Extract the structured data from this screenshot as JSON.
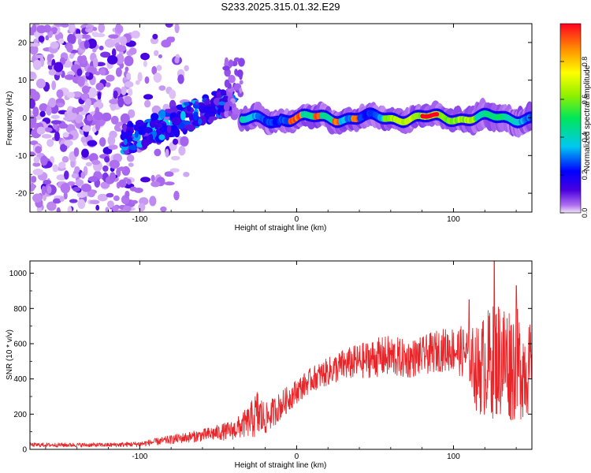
{
  "title": "S233.2025.315.01.32.E29",
  "chart_data": [
    {
      "type": "heatmap",
      "title": "S233.2025.315.01.32.E29",
      "xlabel": "Height of straight line (km)",
      "ylabel": "Frequency (Hz)",
      "xlim": [
        -170,
        150
      ],
      "ylim": [
        -25,
        25
      ],
      "xticks": [
        -100,
        0,
        100
      ],
      "xtick_labels": [
        "-100",
        "0",
        "100"
      ],
      "yticks": [
        -20,
        -10,
        0,
        10,
        20
      ],
      "ytick_labels": [
        "-20",
        "-10",
        "0",
        "10",
        "20"
      ],
      "colorbar": {
        "label": "Normalized spectral amplitude",
        "range": [
          0,
          1
        ],
        "ticks": [
          0.0,
          0.2,
          0.4,
          0.6,
          0.8
        ],
        "tick_labels": [
          "0.0",
          "0.2",
          "0.4",
          "0.6",
          "0.8"
        ],
        "colormap": "rainbow (white/violet at 0 to red at 1)"
      },
      "features": [
        {
          "name": "noise scatter",
          "x_range": [
            -170,
            -95
          ],
          "freq_range": [
            -25,
            25
          ],
          "amplitude": "0.0-0.2"
        },
        {
          "name": "rising ridge",
          "x_range": [
            -110,
            -40
          ],
          "freq_from": -6,
          "freq_to": 5,
          "amplitude": "0.2-0.4"
        },
        {
          "name": "main ridge",
          "x_range": [
            -35,
            150
          ],
          "freq_center": 0,
          "amplitude_peak": 1.0,
          "peak_x": [
            80,
            90
          ]
        }
      ]
    },
    {
      "type": "line",
      "title": "",
      "xlabel": "Height of straight line (km)",
      "ylabel": "SNR (10 * v/v)",
      "xlim": [
        -170,
        150
      ],
      "ylim": [
        0,
        1070
      ],
      "xticks": [
        -100,
        0,
        100
      ],
      "xtick_labels": [
        "-100",
        "0",
        "100"
      ],
      "yticks": [
        0,
        200,
        400,
        600,
        800,
        1000
      ],
      "ytick_labels": [
        "0",
        "200",
        "400",
        "600",
        "800",
        "1000"
      ],
      "series": [
        {
          "name": "SNR",
          "color": "#e8262a",
          "envelope_x": [
            -170,
            -120,
            -100,
            -80,
            -60,
            -40,
            -30,
            -25,
            -20,
            -10,
            0,
            10,
            20,
            30,
            40,
            50,
            60,
            70,
            80,
            90,
            100,
            110,
            115,
            120,
            130,
            140,
            150
          ],
          "envelope_mean": [
            25,
            25,
            30,
            55,
            80,
            110,
            160,
            200,
            170,
            250,
            330,
            400,
            440,
            480,
            500,
            520,
            530,
            510,
            530,
            560,
            570,
            540,
            450,
            480,
            520,
            480,
            450
          ],
          "envelope_amplitude": [
            12,
            12,
            15,
            25,
            35,
            55,
            90,
            150,
            90,
            80,
            70,
            70,
            80,
            90,
            100,
            110,
            120,
            110,
            110,
            120,
            130,
            160,
            250,
            300,
            350,
            330,
            250
          ],
          "notable_peaks": [
            {
              "x": 126,
              "y": 1070
            },
            {
              "x": 110,
              "y": 850
            },
            {
              "x": 140,
              "y": 930
            }
          ]
        }
      ]
    }
  ]
}
